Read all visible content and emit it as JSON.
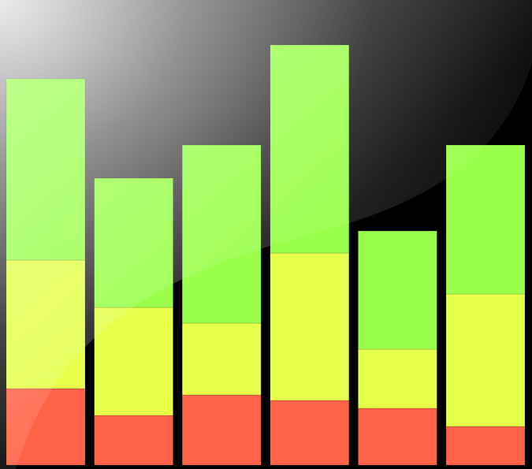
{
  "chart_data": {
    "type": "bar",
    "stacked": true,
    "categories": [
      "",
      "",
      "",
      "",
      "",
      ""
    ],
    "series": [
      {
        "values": [
          97,
          63,
          89,
          82,
          72,
          49
        ],
        "color": "#ff6347"
      },
      {
        "values": [
          163,
          137,
          91,
          187,
          75,
          168
        ],
        "color": "#e5ff4a"
      },
      {
        "values": [
          230,
          164,
          226,
          264,
          150,
          189
        ],
        "color": "#99ff4a"
      }
    ],
    "ylim": [
      0,
      590
    ],
    "grid": false,
    "legend": "none",
    "title": "",
    "xlabel": "",
    "ylabel": "",
    "background": "#000000"
  }
}
